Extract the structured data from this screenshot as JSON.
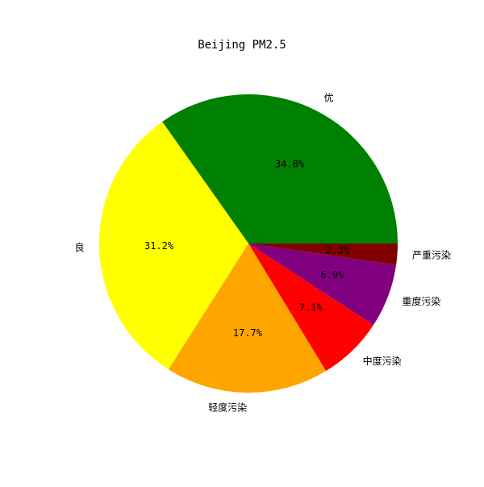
{
  "chart_data": {
    "type": "pie",
    "title": "Beijing PM2.5",
    "categories": [
      "优",
      "良",
      "轻度污染",
      "中度污染",
      "重度污染",
      "严重污染"
    ],
    "values": [
      34.8,
      31.2,
      17.7,
      7.1,
      6.9,
      2.3
    ],
    "labels": [
      "34.8%",
      "31.2%",
      "17.7%",
      "7.1%",
      "6.9%",
      "2.3%"
    ],
    "colors": [
      "#008000",
      "#ffff00",
      "#ffa500",
      "#ff0000",
      "#800080",
      "#800000"
    ],
    "start_angle_deg": 0,
    "direction": "counterclockwise",
    "legend": "none"
  }
}
